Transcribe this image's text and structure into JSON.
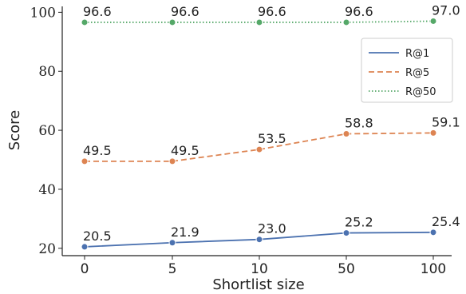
{
  "chart_data": {
    "type": "line",
    "xlabel": "Shortlist size",
    "ylabel": "Score",
    "categories": [
      "0",
      "5",
      "10",
      "50",
      "100"
    ],
    "yticks": [
      20,
      40,
      60,
      80,
      100
    ],
    "ylim": [
      17.5,
      102
    ],
    "grid": false,
    "legend_position": "right",
    "series": [
      {
        "name": "R@1",
        "color": "#4c72b0",
        "dash": "solid",
        "values": [
          20.5,
          21.9,
          23.0,
          25.2,
          25.4
        ],
        "labels": [
          "20.5",
          "21.9",
          "23.0",
          "25.2",
          "25.4"
        ]
      },
      {
        "name": "R@5",
        "color": "#dd8452",
        "dash": "dashed",
        "values": [
          49.5,
          49.5,
          53.5,
          58.8,
          59.1
        ],
        "labels": [
          "49.5",
          "49.5",
          "53.5",
          "58.8",
          "59.1"
        ]
      },
      {
        "name": "R@50",
        "color": "#55a868",
        "dash": "dotted",
        "values": [
          96.6,
          96.6,
          96.6,
          96.6,
          97.0
        ],
        "labels": [
          "96.6",
          "96.6",
          "96.6",
          "96.6",
          "97.0"
        ]
      }
    ]
  }
}
